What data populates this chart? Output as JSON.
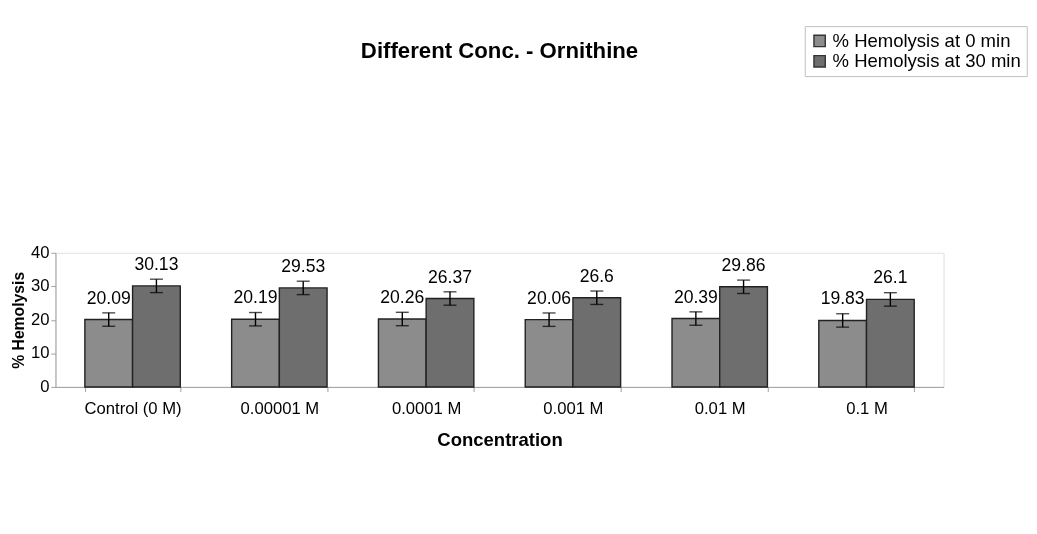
{
  "chart_data": {
    "type": "bar",
    "title": "Different Conc. - Ornithine",
    "xlabel": "Concentration",
    "ylabel": "% Hemolysis",
    "categories": [
      "Control (0 M)",
      "0.00001 M",
      "0.0001 M",
      "0.001 M",
      "0.01 M",
      "0.1 M"
    ],
    "series": [
      {
        "name": "% Hemolysis at 0 min",
        "color": "#8c8c8c",
        "values": [
          20.09,
          20.19,
          20.26,
          20.06,
          20.39,
          19.83
        ],
        "errors": [
          2,
          2,
          2,
          2,
          2,
          2
        ]
      },
      {
        "name": "% Hemolysis at 30 min",
        "color": "#6e6e6e",
        "values": [
          30.13,
          29.53,
          26.37,
          26.6,
          29.86,
          26.1
        ],
        "errors": [
          2,
          2,
          2,
          2,
          2,
          2
        ]
      }
    ],
    "ylim": [
      0,
      40
    ],
    "yticks": [
      0,
      10,
      20,
      30,
      40
    ],
    "grid": false,
    "legend": "top right",
    "data_labels": true
  }
}
